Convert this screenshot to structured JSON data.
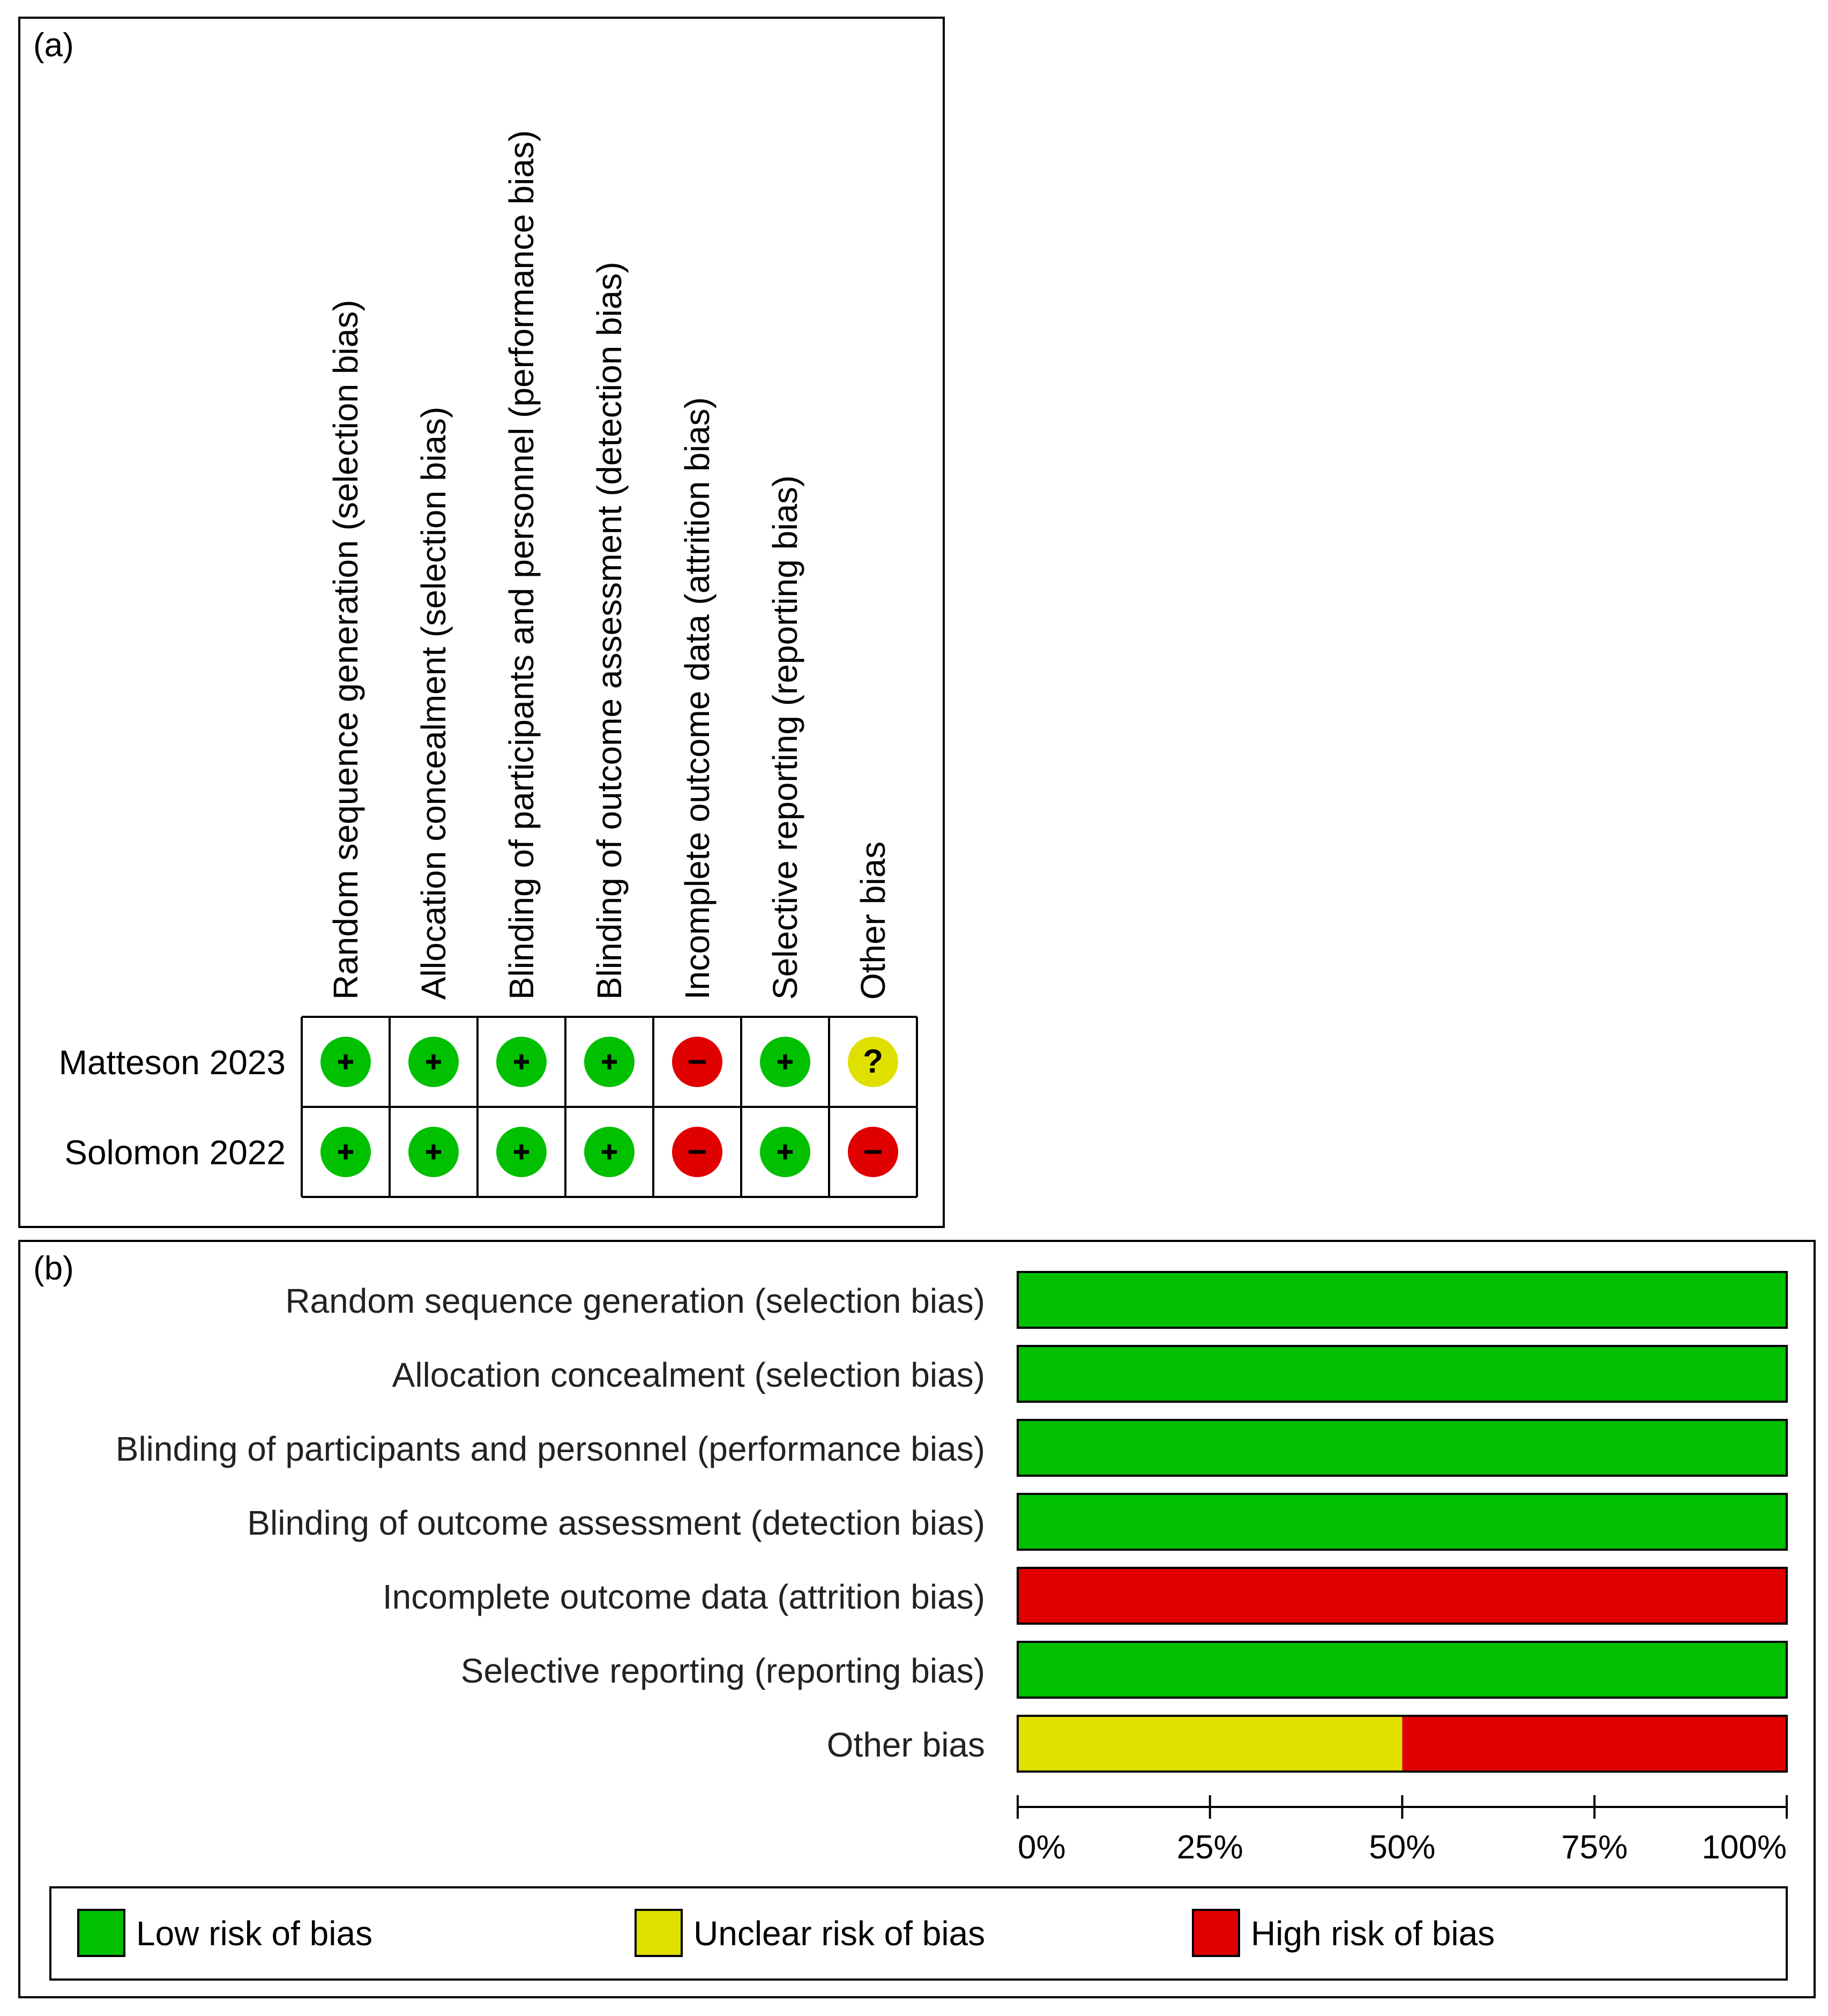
{
  "colors": {
    "low": "#00c000",
    "unclear": "#e0e000",
    "high": "#e00000"
  },
  "chart_data": [
    {
      "type": "table",
      "panel_label": "(a)",
      "domains": [
        "Random sequence generation (selection bias)",
        "Allocation concealment (selection bias)",
        "Blinding of participants and personnel (performance bias)",
        "Blinding of outcome assessment (detection bias)",
        "Incomplete outcome data (attrition bias)",
        "Selective reporting (reporting bias)",
        "Other bias"
      ],
      "studies": [
        {
          "name": "Matteson 2023",
          "judgements": [
            "low",
            "low",
            "low",
            "low",
            "high",
            "low",
            "unclear"
          ]
        },
        {
          "name": "Solomon 2022",
          "judgements": [
            "low",
            "low",
            "low",
            "low",
            "high",
            "low",
            "high"
          ]
        }
      ],
      "symbols": {
        "low": "+",
        "unclear": "?",
        "high": "−"
      }
    },
    {
      "type": "bar",
      "panel_label": "(b)",
      "orientation": "horizontal-stacked",
      "categories": [
        "Random sequence generation (selection bias)",
        "Allocation concealment (selection bias)",
        "Blinding of participants and personnel (performance bias)",
        "Blinding of outcome assessment (detection bias)",
        "Incomplete outcome data (attrition bias)",
        "Selective reporting (reporting bias)",
        "Other bias"
      ],
      "series": [
        {
          "name": "Low risk of bias",
          "key": "low",
          "values": [
            100,
            100,
            100,
            100,
            0,
            100,
            0
          ]
        },
        {
          "name": "Unclear risk of bias",
          "key": "unclear",
          "values": [
            0,
            0,
            0,
            0,
            0,
            0,
            50
          ]
        },
        {
          "name": "High risk of bias",
          "key": "high",
          "values": [
            0,
            0,
            0,
            0,
            100,
            0,
            50
          ]
        }
      ],
      "xlim": [
        0,
        100
      ],
      "xticks": [
        "0%",
        "25%",
        "50%",
        "75%",
        "100%"
      ],
      "legend": "bottom"
    }
  ]
}
